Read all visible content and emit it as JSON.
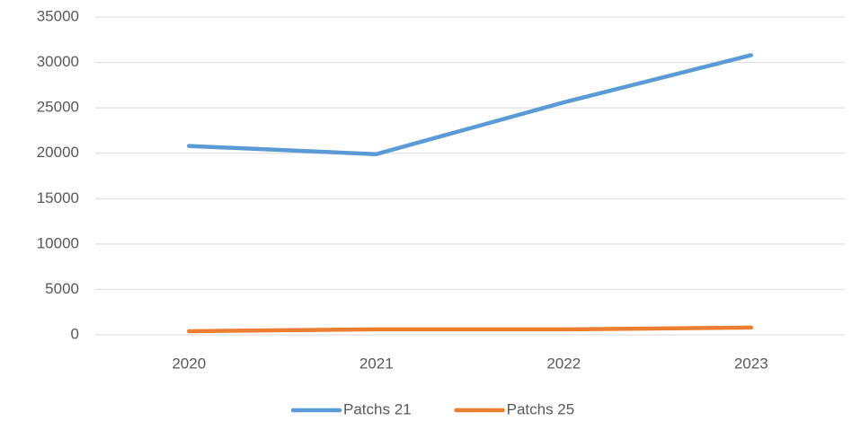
{
  "chart_data": {
    "type": "line",
    "categories": [
      "2020",
      "2021",
      "2022",
      "2023"
    ],
    "series": [
      {
        "name": "Patchs 21",
        "color": "#5b9bd5",
        "values": [
          20800,
          19900,
          25600,
          30800
        ]
      },
      {
        "name": "Patchs 25",
        "color": "#ed7d31",
        "values": [
          400,
          600,
          600,
          800
        ]
      }
    ],
    "ylim": [
      0,
      35000
    ],
    "yticks": [
      0,
      5000,
      10000,
      15000,
      20000,
      25000,
      30000,
      35000
    ],
    "grid": true,
    "legend": "bottom"
  }
}
